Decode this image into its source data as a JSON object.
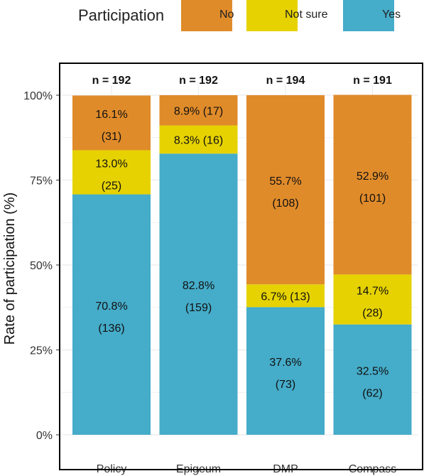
{
  "legend": {
    "title": "Participation",
    "items": [
      {
        "label": "No",
        "color": "#E08B2A"
      },
      {
        "label": "Not sure",
        "color": "#E6D200"
      },
      {
        "label": "Yes",
        "color": "#45ACC9"
      }
    ]
  },
  "chart_data": {
    "type": "bar",
    "stacked": true,
    "ylabel": "Rate of participation (%)",
    "xlabel": "",
    "ylim": [
      0,
      100
    ],
    "yticks": [
      "0%",
      "25%",
      "50%",
      "75%",
      "100%"
    ],
    "grid": true,
    "legend_position": "top",
    "categories": [
      "Policy",
      "Epigeum",
      "DMP",
      "Compass"
    ],
    "n_labels": [
      "n = 192",
      "n = 192",
      "n = 194",
      "n = 191"
    ],
    "series": [
      {
        "name": "Yes",
        "color": "#45ACC9",
        "values": [
          70.8,
          82.8,
          37.6,
          32.5
        ],
        "line1": [
          "70.8%",
          "82.8%",
          "37.6%",
          "32.5%"
        ],
        "line2": [
          "(136)",
          "(159)",
          "(73)",
          "(62)"
        ]
      },
      {
        "name": "Not sure",
        "color": "#E6D200",
        "values": [
          13.0,
          8.3,
          6.7,
          14.7
        ],
        "line1": [
          "13.0%",
          "8.3% (16)",
          "6.7% (13)",
          "14.7%"
        ],
        "line2": [
          "(25)",
          "",
          "",
          "(28)"
        ]
      },
      {
        "name": "No",
        "color": "#E08B2A",
        "values": [
          16.1,
          8.9,
          55.7,
          52.9
        ],
        "line1": [
          "16.1%",
          "8.9% (17)",
          "55.7%",
          "52.9%"
        ],
        "line2": [
          "(31)",
          "",
          "(108)",
          "(101)"
        ]
      }
    ]
  }
}
